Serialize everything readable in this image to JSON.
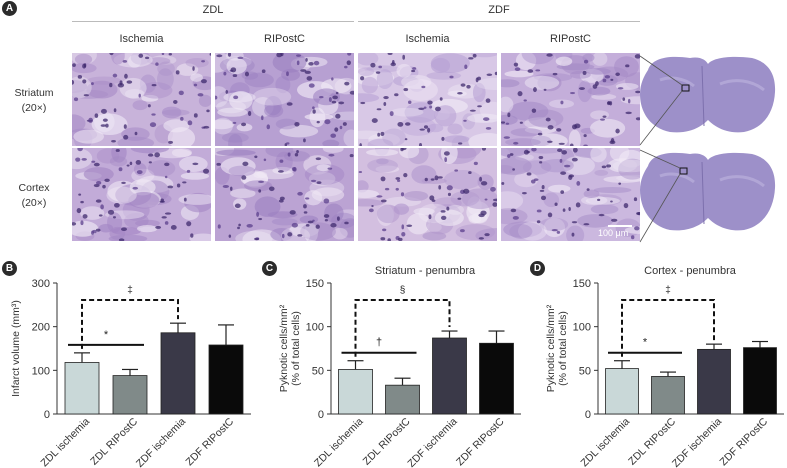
{
  "panel_a": {
    "label": "A",
    "group_headers": [
      "ZDL",
      "ZDF"
    ],
    "column_headers": [
      "Ischemia",
      "RIPostC",
      "Ischemia",
      "RIPostC"
    ],
    "row_labels": [
      {
        "name": "Striatum",
        "mag": "(20×)"
      },
      {
        "name": "Cortex",
        "mag": "(20×)"
      }
    ],
    "scale_bar": "100 μm"
  },
  "chart_data": [
    {
      "panel": "B",
      "type": "bar",
      "title": "",
      "ylabel": "Infarct volume (mm³)",
      "ylim": [
        0,
        300
      ],
      "yticks": [
        0,
        100,
        200,
        300
      ],
      "categories": [
        "ZDL ischemia",
        "ZDL RIPostC",
        "ZDF ischemia",
        "ZDF RIPostC"
      ],
      "values": [
        118,
        88,
        186,
        158
      ],
      "errors": [
        22,
        14,
        22,
        46
      ],
      "colors": [
        "#c9d8d8",
        "#808a89",
        "#3a3948",
        "#0a0a0a"
      ],
      "annotations": [
        {
          "from": 0,
          "to": 1,
          "symbol": "*",
          "style": "solid"
        },
        {
          "from": 0,
          "to": 2,
          "symbol": "‡",
          "style": "dashed"
        }
      ]
    },
    {
      "panel": "C",
      "type": "bar",
      "title": "Striatum - penumbra",
      "ylabel": "Pyknotic cells/mm² (% of total cells)",
      "ylim": [
        0,
        150
      ],
      "yticks": [
        0,
        50,
        100,
        150
      ],
      "categories": [
        "ZDL ischemia",
        "ZDL RIPostC",
        "ZDF ischemia",
        "ZDF RIPostC"
      ],
      "values": [
        51,
        33,
        87,
        81
      ],
      "errors": [
        10,
        8,
        8,
        14
      ],
      "colors": [
        "#c9d8d8",
        "#808a89",
        "#3a3948",
        "#0a0a0a"
      ],
      "annotations": [
        {
          "from": 0,
          "to": 1,
          "symbol": "†",
          "style": "solid"
        },
        {
          "from": 0,
          "to": 2,
          "symbol": "§",
          "style": "dashed"
        }
      ]
    },
    {
      "panel": "D",
      "type": "bar",
      "title": "Cortex - penumbra",
      "ylabel": "Pyknotic cells/mm² (% of total cells)",
      "ylim": [
        0,
        150
      ],
      "yticks": [
        0,
        50,
        100,
        150
      ],
      "categories": [
        "ZDL ischemia",
        "ZDL RIPostC",
        "ZDF ischemia",
        "ZDF RIPostC"
      ],
      "values": [
        52,
        43,
        74,
        76
      ],
      "errors": [
        9,
        5,
        6,
        7
      ],
      "colors": [
        "#c9d8d8",
        "#808a89",
        "#3a3948",
        "#0a0a0a"
      ],
      "annotations": [
        {
          "from": 0,
          "to": 1,
          "symbol": "*",
          "style": "solid"
        },
        {
          "from": 0,
          "to": 2,
          "symbol": "‡",
          "style": "dashed"
        }
      ]
    }
  ]
}
